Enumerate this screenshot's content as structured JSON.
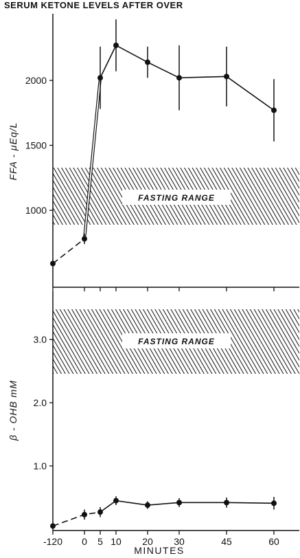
{
  "chart_data": [
    {
      "type": "line",
      "title": "SERUM KETONE LEVELS AFTER OVER",
      "ylabel": "FFA - μEq/L",
      "xlabel": "",
      "x_ticks": [
        "-120",
        "0",
        "5",
        "10",
        "20",
        "30",
        "45",
        "60"
      ],
      "y_ticks": [
        "1000",
        "1500",
        "2000"
      ],
      "ylim": [
        600,
        2350
      ],
      "band": {
        "label": "FASTING RANGE",
        "from": 880,
        "to": 1320
      },
      "segments": [
        {
          "style": "dashed",
          "x": [
            "-120",
            "0"
          ],
          "values": [
            590,
            780
          ]
        },
        {
          "style": "double",
          "x": [
            "0",
            "5"
          ],
          "values": [
            780,
            2020
          ]
        },
        {
          "style": "solid",
          "x": [
            "5",
            "10",
            "20",
            "30",
            "45",
            "60"
          ],
          "values": [
            2020,
            2270,
            2140,
            2020,
            2030,
            1770
          ]
        }
      ],
      "series": [
        {
          "x": [
            "-120",
            "0",
            "5",
            "10",
            "20",
            "30",
            "45",
            "60"
          ],
          "values": [
            590,
            780,
            2020,
            2270,
            2140,
            2020,
            2030,
            1770
          ],
          "error": [
            0,
            40,
            240,
            200,
            120,
            250,
            230,
            240
          ]
        }
      ]
    },
    {
      "type": "line",
      "ylabel": "β - OHB mM",
      "xlabel": "MINUTES",
      "x_ticks": [
        "-120",
        "0",
        "5",
        "10",
        "20",
        "30",
        "45",
        "60"
      ],
      "y_ticks": [
        "1.0",
        "2.0",
        "3.0"
      ],
      "ylim": [
        0,
        3.75
      ],
      "band": {
        "label": "FASTING RANGE",
        "from": 2.5,
        "to": 3.5
      },
      "segments": [
        {
          "style": "dashed",
          "x": [
            "-120",
            "0",
            "5"
          ],
          "values": [
            0.05,
            0.23,
            0.27
          ]
        },
        {
          "style": "solid",
          "x": [
            "5",
            "10",
            "20",
            "30",
            "45",
            "60"
          ],
          "values": [
            0.27,
            0.45,
            0.38,
            0.42,
            0.42,
            0.41
          ]
        }
      ],
      "series": [
        {
          "x": [
            "-120",
            "0",
            "5",
            "10",
            "20",
            "30",
            "45",
            "60"
          ],
          "values": [
            0.05,
            0.23,
            0.27,
            0.45,
            0.38,
            0.42,
            0.42,
            0.41
          ],
          "error": [
            0,
            0.08,
            0.08,
            0.07,
            0.06,
            0.07,
            0.08,
            0.1
          ]
        }
      ]
    }
  ]
}
